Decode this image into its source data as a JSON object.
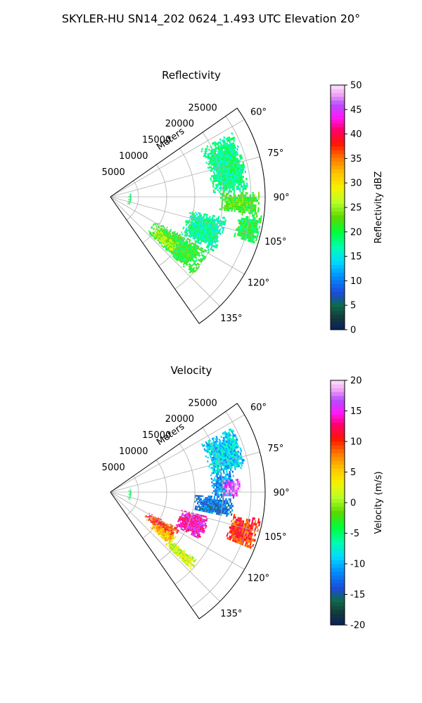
{
  "figure": {
    "title": "SKYLER-HU  SN14_202  0624_1.493 UTC Elevation 20°"
  },
  "chart_data": [
    {
      "type": "polar-sector",
      "title": "Reflectivity",
      "radial_label": "Meters",
      "radial_ticks": [
        "5000",
        "10000",
        "15000",
        "20000",
        "25000"
      ],
      "radial_range": [
        0,
        27500
      ],
      "angle_range_deg": [
        55,
        145
      ],
      "angle_ticks": [
        "60°",
        "75°",
        "90°",
        "105°",
        "120°",
        "135°"
      ],
      "colorbar": {
        "label": "Reflectivity dBZ",
        "range": [
          0,
          50
        ],
        "ticks": [
          "0",
          "5",
          "10",
          "15",
          "20",
          "25",
          "30",
          "35",
          "40",
          "45",
          "50"
        ]
      },
      "echo_regions": [
        {
          "az": [
            62,
            88
          ],
          "r": [
            18000,
            24500
          ],
          "value": 18
        },
        {
          "az": [
            88,
            97
          ],
          "r": [
            19500,
            26500
          ],
          "value": 22
        },
        {
          "az": [
            97,
            108
          ],
          "r": [
            23000,
            27000
          ],
          "value": 20
        },
        {
          "az": [
            100,
            118
          ],
          "r": [
            14000,
            21000
          ],
          "value": 17
        },
        {
          "az": [
            118,
            134
          ],
          "r": [
            9000,
            20000
          ],
          "value": 21
        },
        {
          "az": [
            124,
            132
          ],
          "r": [
            9500,
            14500
          ],
          "value": 26
        },
        {
          "az": [
            80,
            113
          ],
          "r": [
            3200,
            3600
          ],
          "value": 20
        }
      ]
    },
    {
      "type": "polar-sector",
      "title": "Velocity",
      "radial_label": "Meters",
      "radial_ticks": [
        "5000",
        "10000",
        "15000",
        "20000",
        "25000"
      ],
      "radial_range": [
        0,
        27500
      ],
      "angle_range_deg": [
        55,
        145
      ],
      "angle_ticks": [
        "60°",
        "75°",
        "90°",
        "105°",
        "120°",
        "135°"
      ],
      "colorbar": {
        "label": "Velocity (m/s)",
        "range": [
          -20,
          20
        ],
        "ticks": [
          "-20",
          "-15",
          "-10",
          "-5",
          "0",
          "5",
          "10",
          "15",
          "20"
        ]
      },
      "echo_regions": [
        {
          "az": [
            62,
            80
          ],
          "r": [
            18000,
            24500
          ],
          "value": -9
        },
        {
          "az": [
            80,
            92
          ],
          "r": [
            18000,
            22000
          ],
          "value": -11
        },
        {
          "az": [
            84,
            92
          ],
          "r": [
            20000,
            23000
          ],
          "value": 17
        },
        {
          "az": [
            92,
            102
          ],
          "r": [
            15000,
            22000
          ],
          "value": -13
        },
        {
          "az": [
            100,
            112
          ],
          "r": [
            22000,
            27000
          ],
          "value": 10
        },
        {
          "az": [
            104,
            118
          ],
          "r": [
            13000,
            18000
          ],
          "value": 14
        },
        {
          "az": [
            118,
            128
          ],
          "r": [
            7500,
            14000
          ],
          "value": 10
        },
        {
          "az": [
            124,
            132
          ],
          "r": [
            9500,
            14000
          ],
          "value": 5
        },
        {
          "az": [
            128,
            134
          ],
          "r": [
            13500,
            20000
          ],
          "value": 2
        },
        {
          "az": [
            80,
            113
          ],
          "r": [
            3200,
            3600
          ],
          "value": -5
        }
      ]
    }
  ]
}
